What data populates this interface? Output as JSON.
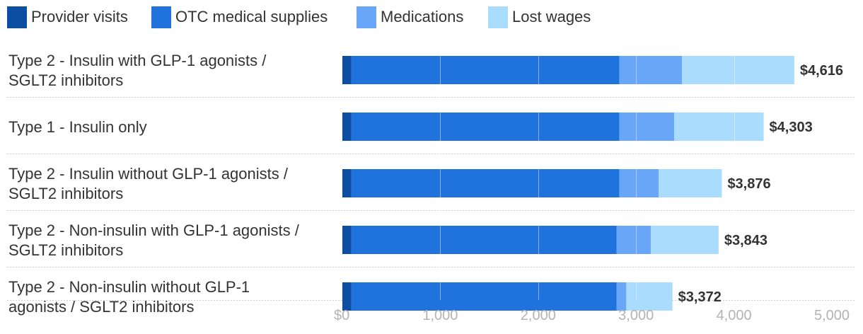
{
  "chart_data": {
    "type": "bar",
    "orientation": "horizontal",
    "stacked": true,
    "categories": [
      [
        "Type 2 - Insulin with GLP-1 agonists /",
        "SGLT2 inhibitors"
      ],
      [
        "Type 1 - Insulin only"
      ],
      [
        "Type 2 - Insulin without GLP-1 agonists /",
        "SGLT2 inhibitors"
      ],
      [
        "Type 2 - Non-insulin with GLP-1 agonists /",
        "SGLT2 inhibitors"
      ],
      [
        "Type 2 - Non-insulin without GLP-1",
        "agonists / SGLT2 inhibitors"
      ]
    ],
    "series": [
      {
        "name": "Provider visits",
        "color": "#0b4ea2",
        "values": [
          90,
          90,
          90,
          90,
          90
        ]
      },
      {
        "name": "OTC medical supplies",
        "color": "#2072dd",
        "values": [
          2740,
          2740,
          2740,
          2710,
          2710
        ]
      },
      {
        "name": "Medications",
        "color": "#6aa6f8",
        "values": [
          640,
          560,
          400,
          350,
          100
        ]
      },
      {
        "name": "Lost wages",
        "color": "#aadcfd",
        "values": [
          1146,
          913,
          646,
          693,
          472
        ]
      }
    ],
    "totals": [
      "$4,616",
      "$4,303",
      "$3,876",
      "$3,843",
      "$3,372"
    ],
    "x_ticks": [
      "$0",
      "1,000",
      "2,000",
      "3,000",
      "4,000",
      "5,000"
    ],
    "xlim": [
      0,
      5000
    ],
    "gridlines": true,
    "legend_position": "top-left"
  }
}
